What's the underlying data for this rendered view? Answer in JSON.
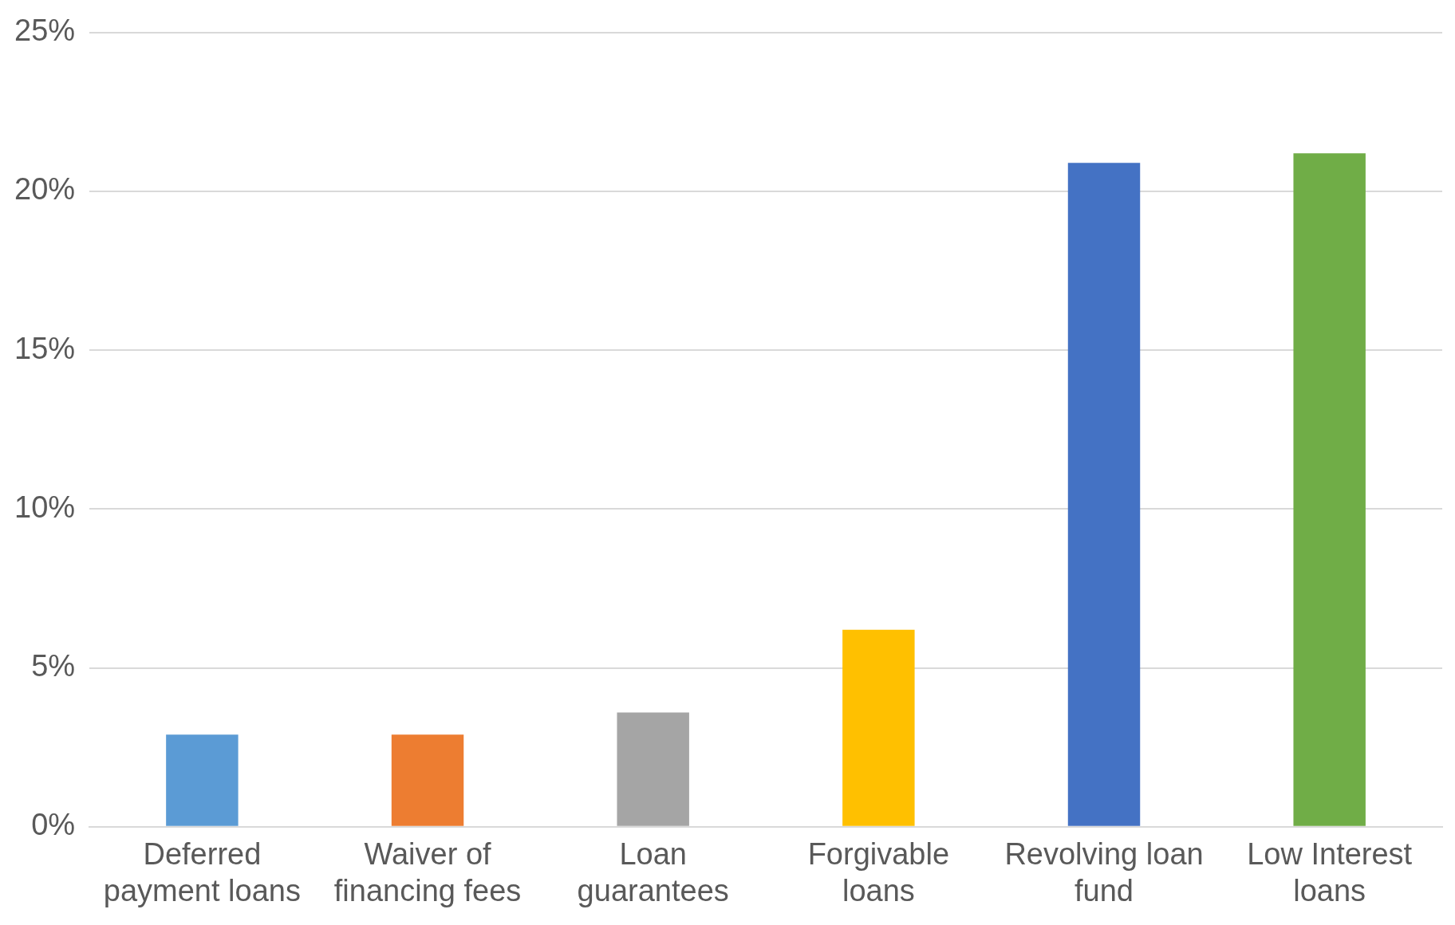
{
  "chart_data": {
    "type": "bar",
    "categories": [
      "Deferred payment loans",
      "Waiver of financing fees",
      "Loan guarantees",
      "Forgivable loans",
      "Revolving loan fund",
      "Low Interest loans"
    ],
    "values": [
      2.9,
      2.9,
      3.6,
      6.2,
      20.9,
      21.2
    ],
    "colors": [
      "#5b9bd5",
      "#ed7d31",
      "#a5a5a5",
      "#ffc000",
      "#4472c4",
      "#70ad47"
    ],
    "ylim": [
      0,
      25
    ],
    "yticks": [
      {
        "value": 0,
        "label": "0%"
      },
      {
        "value": 5,
        "label": "5%"
      },
      {
        "value": 10,
        "label": "10%"
      },
      {
        "value": 15,
        "label": "15%"
      },
      {
        "value": 20,
        "label": "20%"
      },
      {
        "value": 25,
        "label": "25%"
      }
    ],
    "grid": "y",
    "legend": false
  }
}
